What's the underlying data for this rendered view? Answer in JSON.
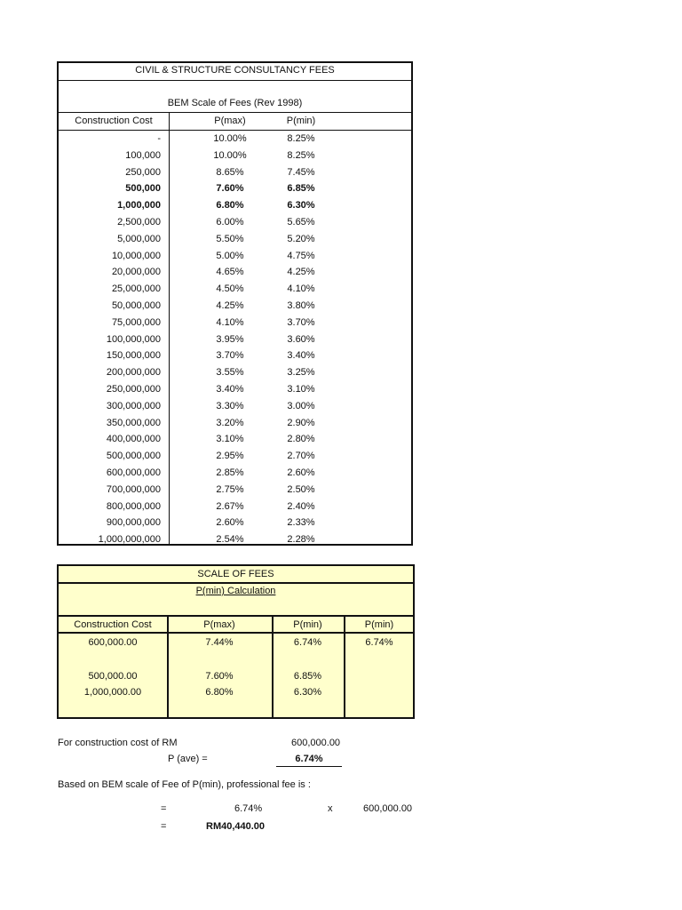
{
  "bem_table": {
    "title": "CIVIL & STRUCTURE CONSULTANCY FEES",
    "subtitle": "BEM Scale of Fees (Rev 1998)",
    "headers": [
      "Construction Cost",
      "P(max)",
      "P(min)"
    ],
    "rows": [
      [
        "-",
        "10.00%",
        "8.25%"
      ],
      [
        "100,000",
        "10.00%",
        "8.25%"
      ],
      [
        "250,000",
        "8.65%",
        "7.45%"
      ],
      [
        "500,000",
        "7.60%",
        "6.85%"
      ],
      [
        "1,000,000",
        "6.80%",
        "6.30%"
      ],
      [
        "2,500,000",
        "6.00%",
        "5.65%"
      ],
      [
        "5,000,000",
        "5.50%",
        "5.20%"
      ],
      [
        "10,000,000",
        "5.00%",
        "4.75%"
      ],
      [
        "20,000,000",
        "4.65%",
        "4.25%"
      ],
      [
        "25,000,000",
        "4.50%",
        "4.10%"
      ],
      [
        "50,000,000",
        "4.25%",
        "3.80%"
      ],
      [
        "75,000,000",
        "4.10%",
        "3.70%"
      ],
      [
        "100,000,000",
        "3.95%",
        "3.60%"
      ],
      [
        "150,000,000",
        "3.70%",
        "3.40%"
      ],
      [
        "200,000,000",
        "3.55%",
        "3.25%"
      ],
      [
        "250,000,000",
        "3.40%",
        "3.10%"
      ],
      [
        "300,000,000",
        "3.30%",
        "3.00%"
      ],
      [
        "350,000,000",
        "3.20%",
        "2.90%"
      ],
      [
        "400,000,000",
        "3.10%",
        "2.80%"
      ],
      [
        "500,000,000",
        "2.95%",
        "2.70%"
      ],
      [
        "600,000,000",
        "2.85%",
        "2.60%"
      ],
      [
        "700,000,000",
        "2.75%",
        "2.50%"
      ],
      [
        "800,000,000",
        "2.67%",
        "2.40%"
      ],
      [
        "900,000,000",
        "2.60%",
        "2.33%"
      ],
      [
        "1,000,000,000",
        "2.54%",
        "2.28%"
      ]
    ]
  },
  "scale_table": {
    "title": "SCALE OF FEES",
    "subtitle": "P(min) Calculation",
    "headers": [
      "Construction Cost",
      "P(max)",
      "P(min)",
      "P(min)"
    ],
    "target": [
      "600,000.00",
      "7.44%",
      "6.74%",
      "6.74%"
    ],
    "lower": [
      "500,000.00",
      "7.60%",
      "6.85%"
    ],
    "upper": [
      "1,000,000.00",
      "6.80%",
      "6.30%"
    ],
    "background": "#ffffcc"
  },
  "summary": {
    "cost_label": "For construction cost of RM",
    "cost_value": "600,000.00",
    "pave_label": "P (ave) =",
    "pave_value": "6.74%",
    "based_text": "Based on BEM scale of Fee of P(min), professional fee is :",
    "eq1": "=",
    "pct": "6.74%",
    "times": "x",
    "amount": "600,000.00",
    "eq2": "=",
    "fee": "RM40,440.00"
  }
}
